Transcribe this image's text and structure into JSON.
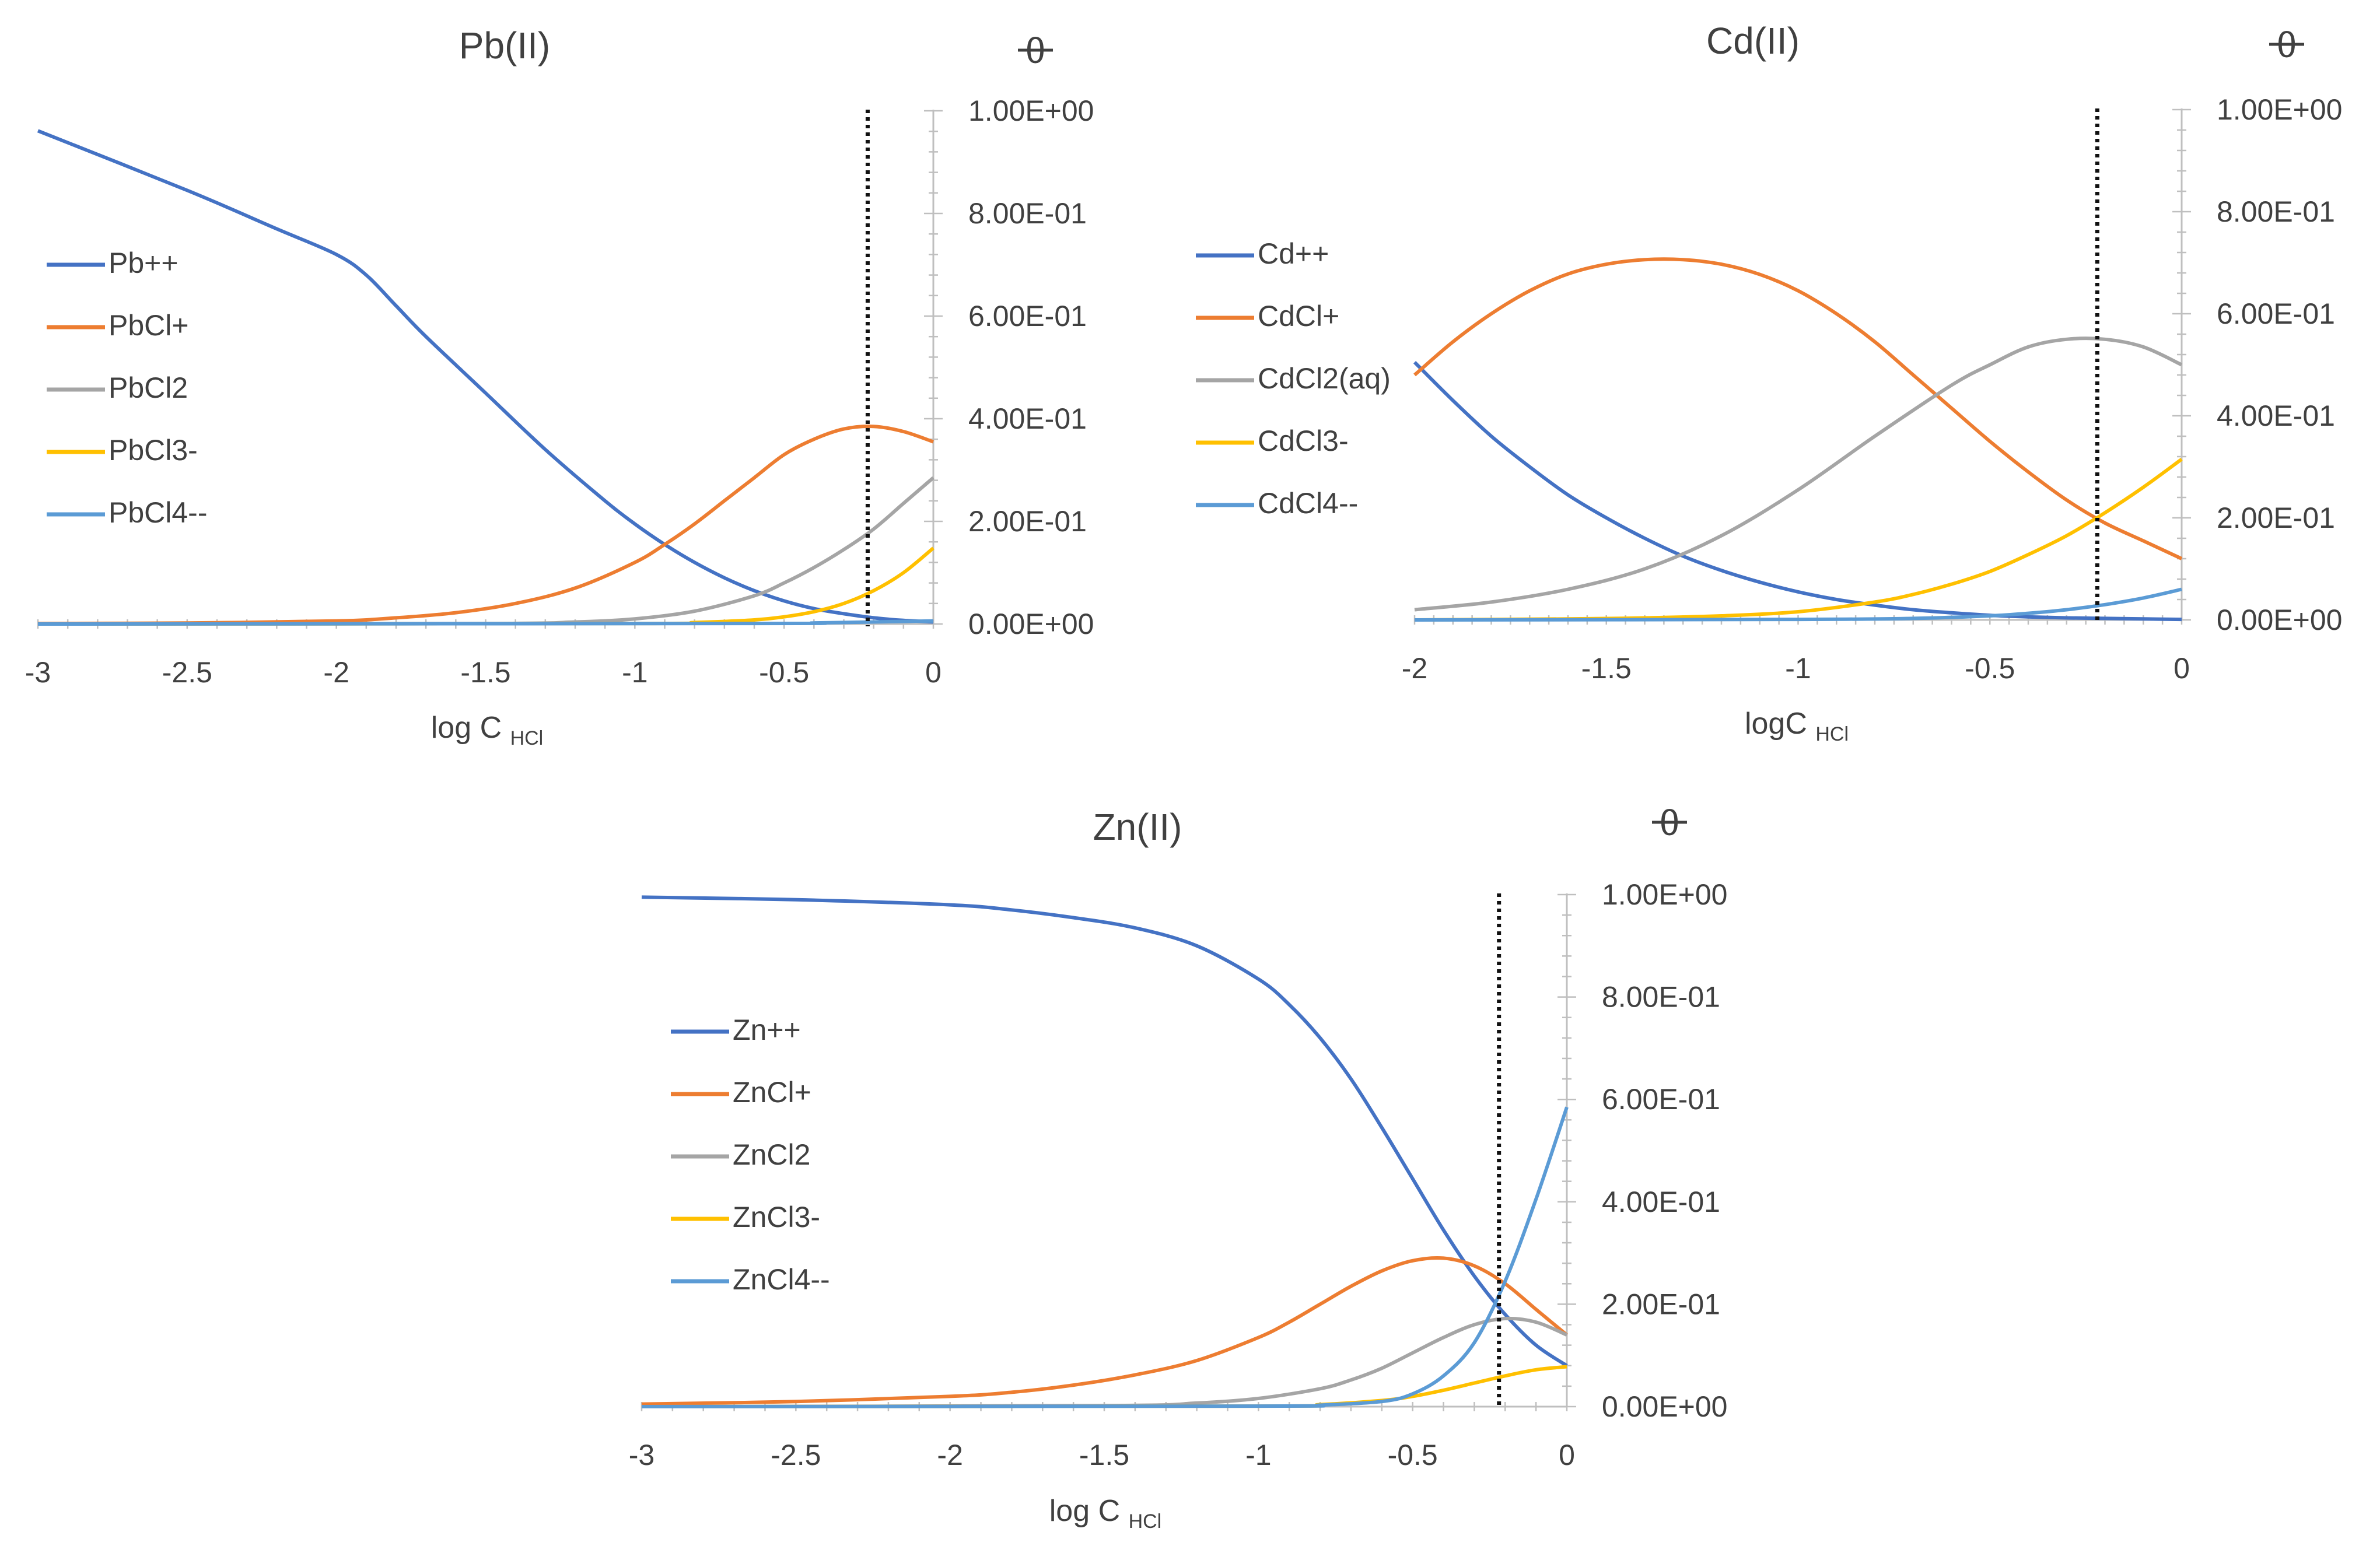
{
  "chart_data": [
    {
      "type": "line",
      "title": "Pb(II)",
      "right_axis_symbol": "θ",
      "xlabel": "log C",
      "xlabel_sub": "HCl",
      "xlim": [
        -3,
        0
      ],
      "ylim": [
        0,
        1
      ],
      "x_ticks": [
        -3,
        -2.5,
        -2,
        -1.5,
        -1,
        -0.5,
        0
      ],
      "x_tick_labels": [
        "-3",
        "-2.5",
        "-2",
        "-1.5",
        "-1",
        "-0.5",
        "0"
      ],
      "y_tick_labels": [
        "0.00E+00",
        "2.00E-01",
        "4.00E-01",
        "6.00E-01",
        "8.00E-01",
        "1.00E+00"
      ],
      "vline_x": -0.22,
      "legend_position": "left",
      "series": [
        {
          "name": "Pb++",
          "color": "#4472C4",
          "x": [
            -3,
            -2.5,
            -2.2,
            -2,
            -1.9,
            -1.8,
            -1.7,
            -1.5,
            -1.3,
            -1.1,
            -1.0,
            -0.9,
            -0.8,
            -0.7,
            -0.6,
            -0.5,
            -0.4,
            -0.3,
            -0.2,
            -0.1,
            0
          ],
          "y": [
            0.961,
            0.845,
            0.77,
            0.72,
            0.68,
            0.62,
            0.56,
            0.45,
            0.34,
            0.24,
            0.195,
            0.155,
            0.12,
            0.09,
            0.065,
            0.045,
            0.03,
            0.02,
            0.012,
            0.007,
            0.004
          ]
        },
        {
          "name": "PbCl+",
          "color": "#ED7D31",
          "x": [
            -3,
            -2.5,
            -2,
            -1.8,
            -1.6,
            -1.4,
            -1.2,
            -1.0,
            -0.9,
            -0.8,
            -0.7,
            -0.6,
            -0.5,
            -0.4,
            -0.3,
            -0.2,
            -0.1,
            0
          ],
          "y": [
            0.001,
            0.002,
            0.006,
            0.012,
            0.022,
            0.04,
            0.07,
            0.12,
            0.155,
            0.195,
            0.24,
            0.285,
            0.33,
            0.36,
            0.38,
            0.385,
            0.375,
            0.355
          ]
        },
        {
          "name": "PbCl2",
          "color": "#A5A5A5",
          "x": [
            -3,
            -1.5,
            -1.2,
            -1.0,
            -0.8,
            -0.6,
            -0.5,
            -0.4,
            -0.3,
            -0.2,
            -0.1,
            0
          ],
          "y": [
            0,
            0.001,
            0.004,
            0.01,
            0.025,
            0.055,
            0.08,
            0.11,
            0.145,
            0.185,
            0.235,
            0.285
          ]
        },
        {
          "name": "PbCl3-",
          "color": "#FFC000",
          "x": [
            -3,
            -1.0,
            -0.8,
            -0.6,
            -0.5,
            -0.4,
            -0.3,
            -0.2,
            -0.1,
            0
          ],
          "y": [
            0,
            0.001,
            0.003,
            0.008,
            0.014,
            0.024,
            0.04,
            0.065,
            0.1,
            0.148
          ]
        },
        {
          "name": "PbCl4--",
          "color": "#5B9BD5",
          "x": [
            -3,
            -0.6,
            -0.4,
            -0.2,
            0
          ],
          "y": [
            0,
            0.001,
            0.002,
            0.004,
            0.006
          ]
        }
      ]
    },
    {
      "type": "line",
      "title": "Cd(II)",
      "right_axis_symbol": "θ",
      "xlabel": "logC",
      "xlabel_sub": "HCl",
      "xlim": [
        -2,
        0
      ],
      "ylim": [
        0,
        1
      ],
      "x_ticks": [
        -2,
        -1.5,
        -1,
        -0.5,
        0
      ],
      "x_tick_labels": [
        "-2",
        "-1.5",
        "-1",
        "-0.5",
        "0"
      ],
      "y_tick_labels": [
        "0.00E+00",
        "2.00E-01",
        "4.00E-01",
        "6.00E-01",
        "8.00E-01",
        "1.00E+00"
      ],
      "vline_x": -0.22,
      "legend_position": "left",
      "series": [
        {
          "name": "Cd++",
          "color": "#4472C4",
          "x": [
            -2,
            -1.9,
            -1.8,
            -1.7,
            -1.6,
            -1.5,
            -1.4,
            -1.3,
            -1.2,
            -1.1,
            -1.0,
            -0.9,
            -0.8,
            -0.7,
            -0.6,
            -0.5,
            -0.4,
            -0.3,
            -0.2,
            -0.1,
            0
          ],
          "y": [
            0.505,
            0.43,
            0.36,
            0.3,
            0.245,
            0.2,
            0.16,
            0.125,
            0.097,
            0.074,
            0.055,
            0.04,
            0.029,
            0.02,
            0.014,
            0.009,
            0.006,
            0.004,
            0.003,
            0.002,
            0.001
          ]
        },
        {
          "name": "CdCl+",
          "color": "#ED7D31",
          "x": [
            -2,
            -1.9,
            -1.8,
            -1.7,
            -1.6,
            -1.5,
            -1.4,
            -1.3,
            -1.2,
            -1.1,
            -1.0,
            -0.9,
            -0.8,
            -0.7,
            -0.6,
            -0.5,
            -0.4,
            -0.3,
            -0.2,
            -0.1,
            0
          ],
          "y": [
            0.48,
            0.545,
            0.6,
            0.645,
            0.678,
            0.697,
            0.706,
            0.706,
            0.697,
            0.677,
            0.645,
            0.6,
            0.545,
            0.48,
            0.415,
            0.35,
            0.29,
            0.235,
            0.19,
            0.155,
            0.12
          ]
        },
        {
          "name": "CdCl2(aq)",
          "color": "#A5A5A5",
          "x": [
            -2,
            -1.8,
            -1.6,
            -1.4,
            -1.2,
            -1.0,
            -0.8,
            -0.6,
            -0.5,
            -0.4,
            -0.3,
            -0.2,
            -0.1,
            0
          ],
          "y": [
            0.02,
            0.035,
            0.06,
            0.1,
            0.165,
            0.255,
            0.36,
            0.46,
            0.5,
            0.535,
            0.55,
            0.55,
            0.535,
            0.5
          ]
        },
        {
          "name": "CdCl3-",
          "color": "#FFC000",
          "x": [
            -2,
            -1.6,
            -1.4,
            -1.2,
            -1.0,
            -0.8,
            -0.7,
            -0.6,
            -0.5,
            -0.4,
            -0.3,
            -0.2,
            -0.1,
            0
          ],
          "y": [
            0,
            0.002,
            0.004,
            0.008,
            0.016,
            0.035,
            0.05,
            0.07,
            0.095,
            0.128,
            0.165,
            0.21,
            0.26,
            0.315
          ]
        },
        {
          "name": "CdCl4--",
          "color": "#5B9BD5",
          "x": [
            -2,
            -1.0,
            -0.7,
            -0.5,
            -0.4,
            -0.3,
            -0.2,
            -0.1,
            0
          ],
          "y": [
            0,
            0.001,
            0.003,
            0.008,
            0.013,
            0.02,
            0.03,
            0.043,
            0.06
          ]
        }
      ]
    },
    {
      "type": "line",
      "title": "Zn(II)",
      "right_axis_symbol": "θ",
      "xlabel": "log C",
      "xlabel_sub": "HCl",
      "xlim": [
        -3,
        0
      ],
      "ylim": [
        0,
        1
      ],
      "x_ticks": [
        -3,
        -2.5,
        -2,
        -1.5,
        -1,
        -0.5,
        0
      ],
      "x_tick_labels": [
        "-3",
        "-2.5",
        "-2",
        "-1.5",
        "-1",
        "-0.5",
        "0"
      ],
      "y_tick_labels": [
        "0.00E+00",
        "2.00E-01",
        "4.00E-01",
        "6.00E-01",
        "8.00E-01",
        "1.00E+00"
      ],
      "vline_x": -0.22,
      "legend_position": "left",
      "series": [
        {
          "name": "Zn++",
          "color": "#4472C4",
          "x": [
            -3,
            -2.5,
            -2,
            -1.8,
            -1.6,
            -1.4,
            -1.2,
            -1.0,
            -0.9,
            -0.8,
            -0.7,
            -0.6,
            -0.5,
            -0.4,
            -0.3,
            -0.2,
            -0.1,
            0
          ],
          "y": [
            0.995,
            0.99,
            0.98,
            0.97,
            0.955,
            0.935,
            0.9,
            0.835,
            0.785,
            0.72,
            0.64,
            0.545,
            0.445,
            0.345,
            0.255,
            0.18,
            0.12,
            0.08
          ]
        },
        {
          "name": "ZnCl+",
          "color": "#ED7D31",
          "x": [
            -3,
            -2.5,
            -2,
            -1.8,
            -1.6,
            -1.4,
            -1.2,
            -1.0,
            -0.9,
            -0.8,
            -0.7,
            -0.6,
            -0.5,
            -0.4,
            -0.3,
            -0.2,
            -0.1,
            0
          ],
          "y": [
            0.005,
            0.01,
            0.02,
            0.028,
            0.042,
            0.062,
            0.09,
            0.135,
            0.165,
            0.2,
            0.235,
            0.265,
            0.285,
            0.29,
            0.275,
            0.24,
            0.19,
            0.14
          ]
        },
        {
          "name": "ZnCl2",
          "color": "#A5A5A5",
          "x": [
            -3,
            -1.5,
            -1.2,
            -1.0,
            -0.8,
            -0.7,
            -0.6,
            -0.5,
            -0.4,
            -0.3,
            -0.2,
            -0.1,
            0
          ],
          "y": [
            0,
            0.002,
            0.007,
            0.016,
            0.035,
            0.052,
            0.075,
            0.105,
            0.135,
            0.16,
            0.172,
            0.165,
            0.14
          ]
        },
        {
          "name": "ZnCl3-",
          "color": "#FFC000",
          "x": [
            -3,
            -1.0,
            -0.8,
            -0.6,
            -0.5,
            -0.4,
            -0.3,
            -0.2,
            -0.1,
            0
          ],
          "y": [
            0,
            0.001,
            0.004,
            0.012,
            0.02,
            0.032,
            0.046,
            0.06,
            0.072,
            0.078
          ]
        },
        {
          "name": "ZnCl4--",
          "color": "#5B9BD5",
          "x": [
            -3,
            -1.0,
            -0.8,
            -0.6,
            -0.5,
            -0.4,
            -0.3,
            -0.2,
            -0.1,
            0
          ],
          "y": [
            0,
            0.001,
            0.003,
            0.01,
            0.025,
            0.06,
            0.125,
            0.245,
            0.405,
            0.585
          ]
        }
      ]
    }
  ]
}
